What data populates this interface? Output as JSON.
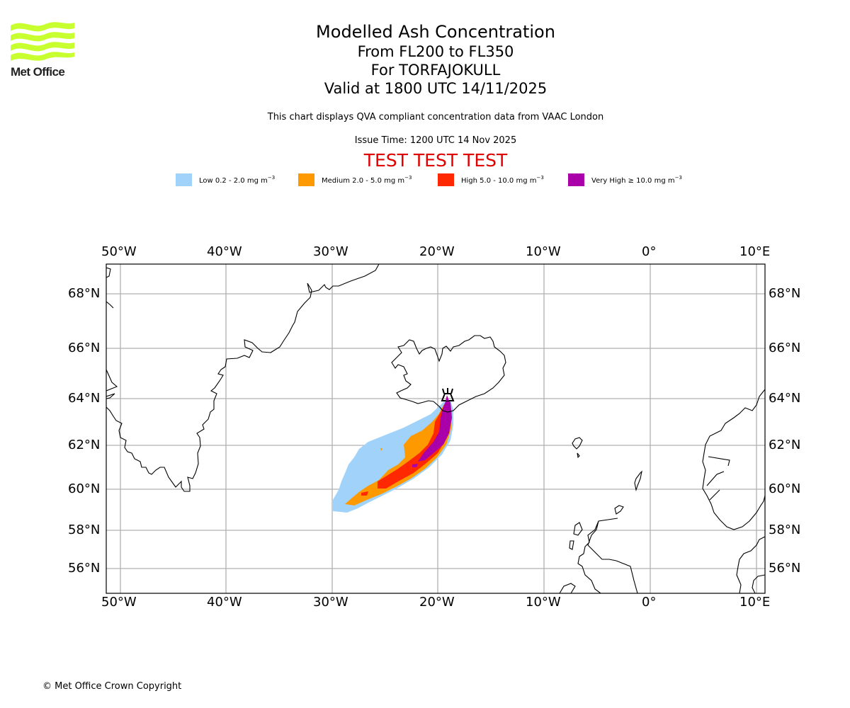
{
  "logo": {
    "icon": "met-office-waves-logo",
    "text": "Met Office",
    "color": "#c8ff2e"
  },
  "title": {
    "line1": "Modelled Ash Concentration",
    "line2": "From FL200 to FL350",
    "line3": "For TORFAJOKULL",
    "line4": "Valid at 1800 UTC 14/11/2025"
  },
  "subtitle": "This chart displays QVA compliant concentration data from VAAC London",
  "issue_time": "Issue Time: 1200 UTC 14 Nov 2025",
  "test_banner": "TEST TEST TEST",
  "legend": [
    {
      "label": "Low 0.2 - 2.0 mg m",
      "unit_exp": "−3",
      "color": "#a0d2fa"
    },
    {
      "label": "Medium 2.0 - 5.0 mg m",
      "unit_exp": "−3",
      "color": "#ff9900"
    },
    {
      "label": "High 5.0 - 10.0 mg m",
      "unit_exp": "−3",
      "color": "#ff2800"
    },
    {
      "label": "Very High  ≥  10.0 mg m",
      "unit_exp": "−3",
      "color": "#aa00aa"
    }
  ],
  "map": {
    "lon_ticks": [
      "50°W",
      "40°W",
      "30°W",
      "20°W",
      "10°W",
      "0°",
      "10°E"
    ],
    "lat_ticks": [
      "68°N",
      "66°N",
      "64°N",
      "62°N",
      "60°N",
      "58°N",
      "56°N"
    ],
    "lon_range": [
      -51.3,
      10.8
    ],
    "lat_range": [
      54.9,
      69.2
    ],
    "volcano": {
      "name": "TORFAJOKULL",
      "icon": "volcano-icon",
      "lon": -19.1,
      "lat": 63.9
    },
    "grid": true
  },
  "copyright": "© Met Office Crown Copyright"
}
